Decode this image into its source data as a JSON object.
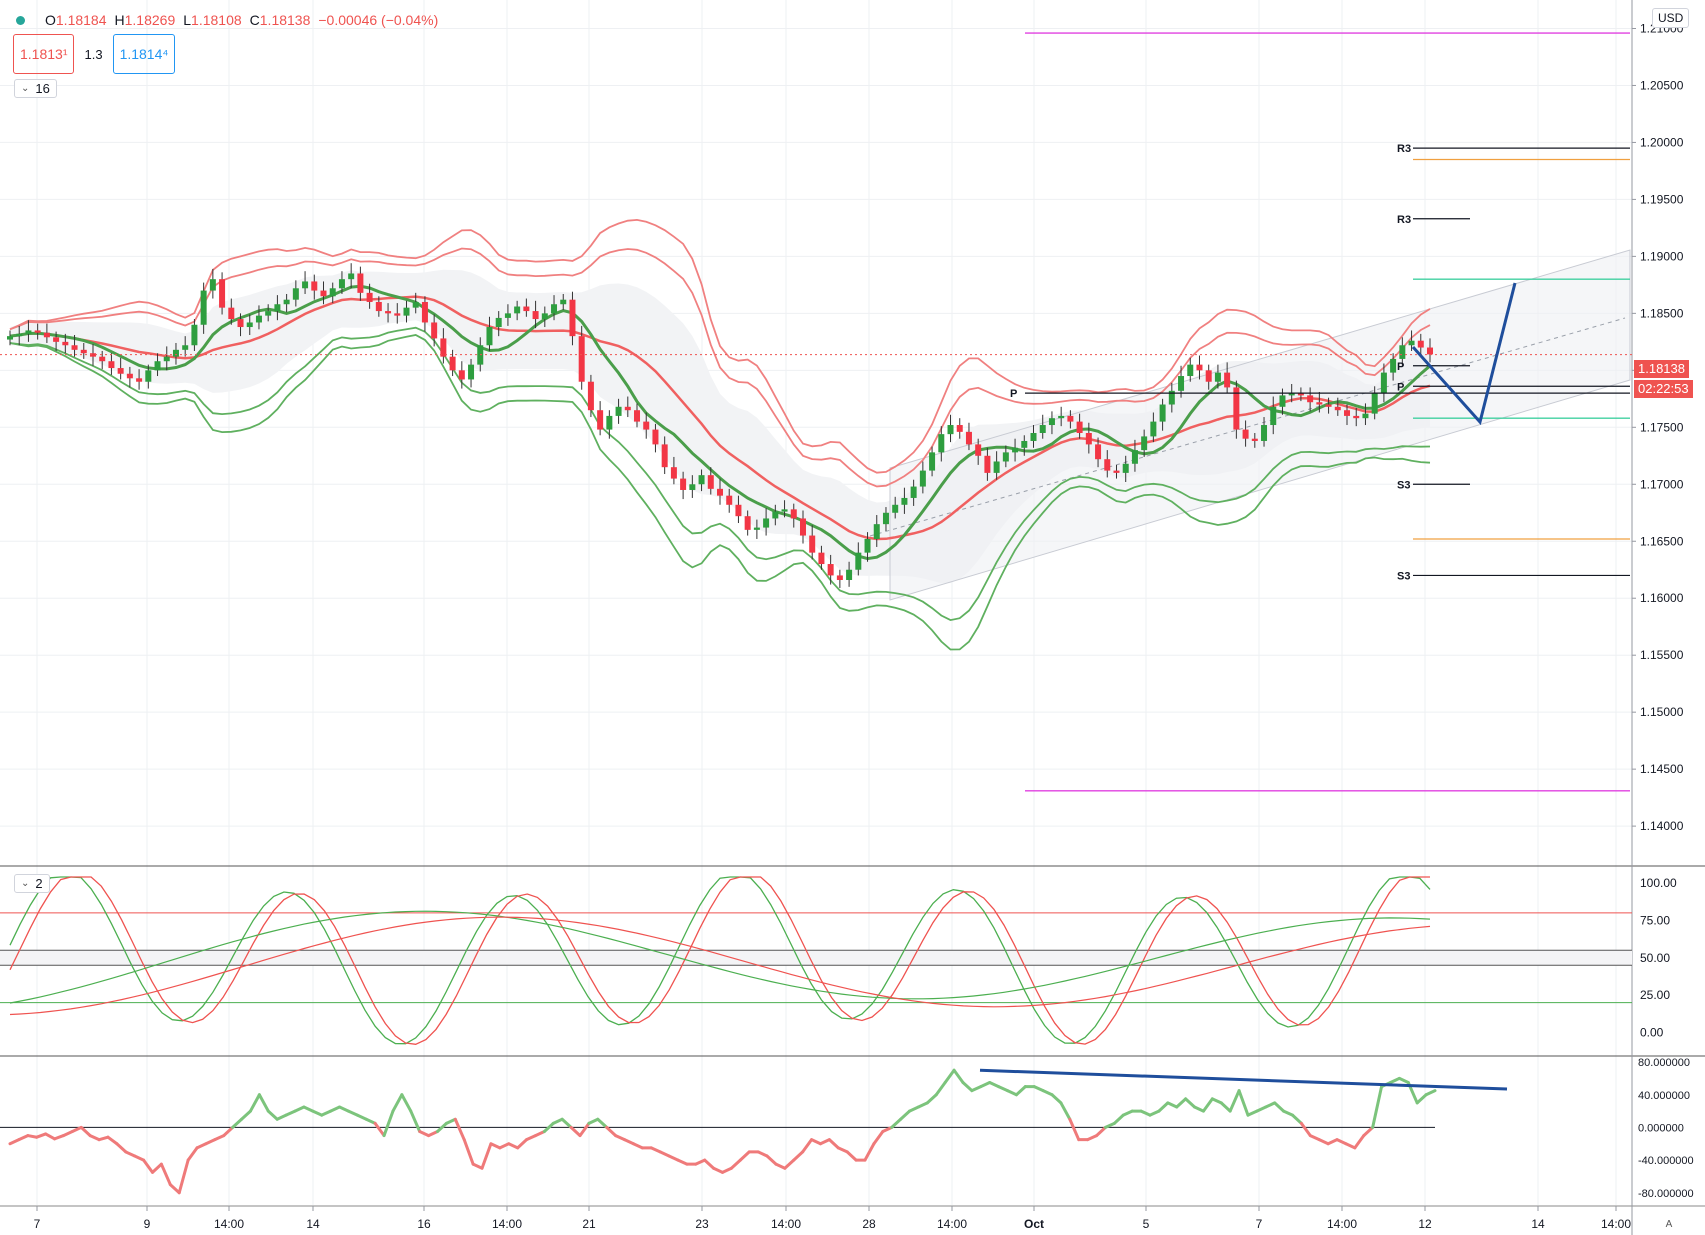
{
  "header": {
    "indicator_name_icon": "status-dot-icon",
    "open_label": "O",
    "open_value": "1.18184",
    "high_label": "H",
    "high_value": "1.18269",
    "low_label": "L",
    "low_value": "1.18108",
    "close_label": "C",
    "close_value": "1.18138",
    "change": "−0.00046 (−0.04%)"
  },
  "trade": {
    "sell_price": "1.1813¹",
    "spread": "1.3",
    "buy_price": "1.1814⁴"
  },
  "panes": {
    "main_collapse_label": "16",
    "stoch_collapse_label": "2"
  },
  "currency": "USD",
  "last_price": {
    "value": "1.18138",
    "countdown": "02:22:53"
  },
  "mode_button": "A",
  "colors": {
    "bull": "#2e9e3f",
    "bear": "#f23645",
    "band_red": "#f08080",
    "band_green": "#5fb05f",
    "trend_blue": "#1f4e9c",
    "magenta": "#e040e0",
    "orange": "#f0a040",
    "teal": "#40d0a0"
  },
  "chart_data": [
    {
      "type": "candlestick",
      "pane": "price",
      "yaxis_ticks": [
        "1.21000",
        "1.20500",
        "1.20000",
        "1.19500",
        "1.19000",
        "1.18500",
        "1.18000",
        "1.17500",
        "1.17000",
        "1.16500",
        "1.16000",
        "1.15500",
        "1.15000",
        "1.14500",
        "1.14000"
      ],
      "ylim": [
        1.1365,
        1.2125
      ],
      "x_ticks": [
        "7",
        "9",
        "14:00",
        "14",
        "16",
        "14:00",
        "21",
        "23",
        "14:00",
        "28",
        "14:00",
        "Oct",
        "5",
        "7",
        "14:00",
        "12",
        "14",
        "14:00"
      ],
      "pivot_labels": [
        "R3",
        "R3",
        "P",
        "P",
        "P",
        "S3",
        "S3"
      ],
      "close_series": [
        1.183,
        1.1832,
        1.1835,
        1.1833,
        1.1829,
        1.1825,
        1.1822,
        1.1818,
        1.1815,
        1.1812,
        1.1808,
        1.1802,
        1.1797,
        1.1793,
        1.179,
        1.18,
        1.1808,
        1.1812,
        1.1818,
        1.1822,
        1.184,
        1.187,
        1.188,
        1.1855,
        1.1845,
        1.1838,
        1.1842,
        1.1848,
        1.1852,
        1.1858,
        1.1862,
        1.1872,
        1.1878,
        1.187,
        1.1865,
        1.1872,
        1.188,
        1.1885,
        1.1868,
        1.186,
        1.1852,
        1.185,
        1.1848,
        1.1855,
        1.186,
        1.1842,
        1.1828,
        1.1812,
        1.18,
        1.1792,
        1.1805,
        1.1822,
        1.1838,
        1.1846,
        1.185,
        1.1856,
        1.1852,
        1.1845,
        1.185,
        1.1858,
        1.1862,
        1.183,
        1.179,
        1.1765,
        1.1748,
        1.176,
        1.1768,
        1.1765,
        1.1755,
        1.1748,
        1.1735,
        1.1715,
        1.1705,
        1.1695,
        1.17,
        1.1708,
        1.1696,
        1.169,
        1.1682,
        1.1672,
        1.166,
        1.1662,
        1.167,
        1.1676,
        1.1678,
        1.167,
        1.1655,
        1.164,
        1.163,
        1.162,
        1.1616,
        1.1625,
        1.164,
        1.1652,
        1.1665,
        1.1675,
        1.1682,
        1.1688,
        1.1698,
        1.1712,
        1.1728,
        1.1744,
        1.1752,
        1.1746,
        1.1735,
        1.1725,
        1.171,
        1.172,
        1.1728,
        1.1732,
        1.1738,
        1.1745,
        1.1752,
        1.1758,
        1.176,
        1.1755,
        1.1745,
        1.1735,
        1.1722,
        1.1712,
        1.171,
        1.1718,
        1.173,
        1.1742,
        1.1755,
        1.177,
        1.1782,
        1.1795,
        1.1805,
        1.18,
        1.179,
        1.1798,
        1.1785,
        1.1748,
        1.174,
        1.1738,
        1.1752,
        1.1768,
        1.1778,
        1.178,
        1.1778,
        1.1772,
        1.177,
        1.1768,
        1.1765,
        1.176,
        1.1758,
        1.1762,
        1.178,
        1.1798,
        1.181,
        1.1822,
        1.1826,
        1.182,
        1.1814
      ]
    },
    {
      "type": "line",
      "pane": "stochastic",
      "yaxis_ticks": [
        "100.00",
        "75.00",
        "50.00",
        "25.00",
        "0.00"
      ],
      "ylim": [
        -15,
        110
      ],
      "levels": [
        80,
        55,
        45,
        20
      ]
    },
    {
      "type": "line",
      "pane": "momentum",
      "yaxis_ticks": [
        "80.000000",
        "40.000000",
        "0.000000",
        "-40.000000",
        "-80.000000"
      ],
      "ylim": [
        -95,
        85
      ],
      "values": [
        -20,
        -15,
        -10,
        -12,
        -8,
        -14,
        -10,
        -5,
        0,
        -10,
        -15,
        -12,
        -20,
        -30,
        -35,
        -40,
        -55,
        -45,
        -70,
        -80,
        -40,
        -25,
        -20,
        -15,
        -10,
        0,
        10,
        20,
        40,
        20,
        10,
        15,
        20,
        25,
        20,
        15,
        20,
        25,
        20,
        15,
        10,
        5,
        -10,
        20,
        40,
        20,
        -5,
        -10,
        -5,
        5,
        10,
        -15,
        -45,
        -50,
        -20,
        -25,
        -20,
        -25,
        -15,
        -10,
        -5,
        5,
        10,
        0,
        -10,
        5,
        10,
        0,
        -10,
        -15,
        -20,
        -25,
        -25,
        -30,
        -35,
        -40,
        -45,
        -45,
        -40,
        -50,
        -55,
        -50,
        -40,
        -30,
        -30,
        -35,
        -45,
        -50,
        -40,
        -30,
        -15,
        -20,
        -15,
        -25,
        -30,
        -40,
        -40,
        -20,
        -5,
        0,
        10,
        20,
        25,
        30,
        40,
        55,
        70,
        55,
        45,
        50,
        55,
        50,
        45,
        40,
        50,
        50,
        45,
        40,
        30,
        10,
        -15,
        -15,
        -10,
        0,
        5,
        15,
        20,
        20,
        15,
        20,
        30,
        25,
        35,
        25,
        20,
        35,
        30,
        20,
        45,
        15,
        20,
        25,
        30,
        20,
        15,
        5,
        -10,
        -15,
        -20,
        -15,
        -20,
        -25,
        -10,
        0,
        50,
        55,
        60,
        55,
        30,
        40,
        45
      ]
    }
  ]
}
